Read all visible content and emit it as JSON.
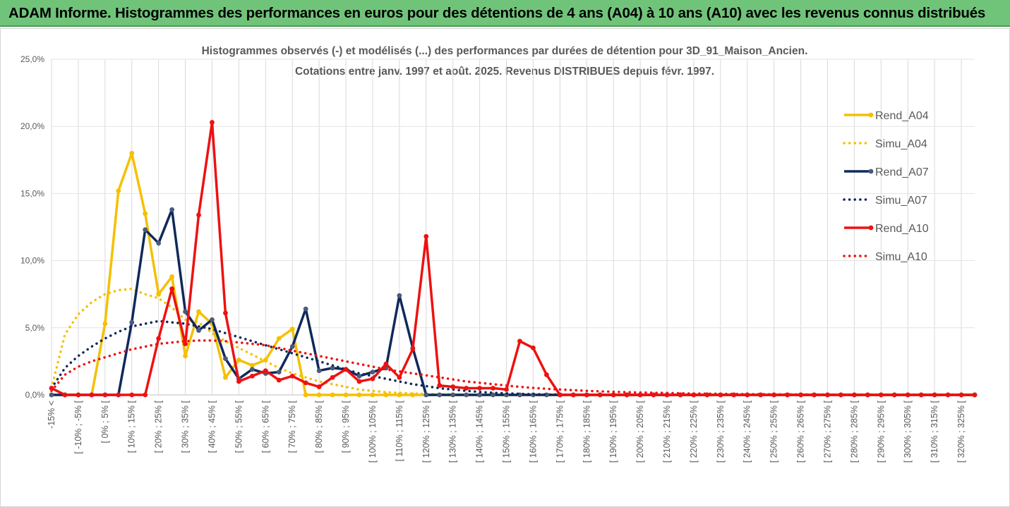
{
  "header": {
    "title": "ADAM Informe. Histogrammes des performances en euros pour des détentions de 4 ans (A04) à 10 ans (A10) avec les revenus connus distribués"
  },
  "chart_data": {
    "type": "line",
    "title_line1": "Histogrammes observés (-) et modélisés (...) des performances par durées de détention pour 3D_91_Maison_Ancien.",
    "title_line2": "Cotations entre janv. 1997 et août. 2025. Revenus DISTRIBUES depuis févr. 1997.",
    "ylim": [
      0,
      25
    ],
    "yticks": [
      "0,0%",
      "5,0%",
      "10,0%",
      "15,0%",
      "20,0%",
      "25,0%"
    ],
    "categories": [
      "-15% <",
      "[ -15% ; -10% [",
      "[ -10% ; -5% [",
      "[ -5% ; 0% [",
      "[ 0% ; 5% [",
      "[ 5% ; 10% [",
      "[ 10% ; 15% [",
      "[ 15% ; 20% [",
      "[ 20% ; 25% [",
      "[ 25% ; 30% [",
      "[ 30% ; 35% [",
      "[ 35% ; 40% [",
      "[ 40% ; 45% [",
      "[ 45% ; 50% [",
      "[ 50% ; 55% [",
      "[ 55% ; 60% [",
      "[ 60% ; 65% [",
      "[ 65% ; 70% [",
      "[ 70% ; 75% [",
      "[ 75% ; 80% [",
      "[ 80% ; 85% [",
      "[ 85% ; 90% [",
      "[ 90% ; 95% [",
      "[ 95% ; 100% [",
      "[ 100% ; 105% [",
      "[ 105% ; 110% [",
      "[ 110% ; 115% [",
      "[ 115% ; 120% [",
      "[ 120% ; 125% [",
      "[ 125% ; 130% [",
      "[ 130% ; 135% [",
      "[ 135% ; 140% [",
      "[ 140% ; 145% [",
      "[ 145% ; 150% [",
      "[ 150% ; 155% [",
      "[ 155% ; 160% [",
      "[ 160% ; 165% [",
      "[ 165% ; 170% [",
      "[ 170% ; 175% [",
      "[ 175% ; 180% [",
      "[ 180% ; 185% [",
      "[ 185% ; 190% [",
      "[ 190% ; 195% [",
      "[ 195% ; 200% [",
      "[ 200% ; 205% [",
      "[ 205% ; 210% [",
      "[ 210% ; 215% [",
      "[ 215% ; 220% [",
      "[ 220% ; 225% [",
      "[ 225% ; 230% [",
      "[ 230% ; 235% [",
      "[ 235% ; 240% [",
      "[ 240% ; 245% [",
      "[ 245% ; 250% [",
      "[ 250% ; 255% [",
      "[ 255% ; 260% [",
      "[ 260% ; 265% [",
      "[ 265% ; 270% [",
      "[ 270% ; 275% [",
      "[ 275% ; 280% [",
      "[ 280% ; 285% [",
      "[ 285% ; 290% [",
      "[ 290% ; 295% [",
      "[ 295% ; 300% [",
      "[ 300% ; 305% [",
      "[ 305% ; 310% [",
      "[ 310% ; 315% [",
      "[ 315% ; 320% [",
      "[ 320% ; 325% [",
      "[ 325% ; 330% ["
    ],
    "label_every": 2,
    "grid": true,
    "legend_position": "right",
    "series": [
      {
        "name": "Rend_A04",
        "style": "solid",
        "color": "#f5c000",
        "values": [
          0,
          0,
          0,
          0,
          5.3,
          15.2,
          18.0,
          13.5,
          7.5,
          8.8,
          2.9,
          6.2,
          5.3,
          1.3,
          2.6,
          2.2,
          2.6,
          4.2,
          4.9,
          0,
          0,
          0,
          0,
          0,
          0,
          0,
          0,
          0,
          0,
          0,
          0,
          0,
          0,
          0,
          0,
          0,
          0,
          0,
          0,
          0,
          0,
          0,
          0,
          0,
          0,
          0,
          0,
          0,
          0,
          0,
          0,
          0,
          0,
          0,
          0,
          0,
          0,
          0,
          0,
          0,
          0,
          0,
          0,
          0,
          0,
          0,
          0,
          0,
          0,
          0
        ]
      },
      {
        "name": "Simu_A04",
        "style": "dotted",
        "color": "#f5c000",
        "values": [
          0.5,
          4.5,
          6.0,
          6.9,
          7.5,
          7.8,
          7.9,
          7.5,
          7.2,
          6.5,
          5.6,
          5.4,
          4.6,
          4.0,
          3.5,
          3.0,
          2.5,
          2.0,
          1.6,
          1.3,
          1.0,
          0.8,
          0.6,
          0.4,
          0.3,
          0.2,
          0.15,
          0.1,
          0.07,
          0.05,
          0.03,
          0.02,
          0,
          0,
          0,
          0,
          0,
          0,
          0,
          0,
          0,
          0,
          0,
          0,
          0,
          0,
          0,
          0,
          0,
          0,
          0,
          0,
          0,
          0,
          0,
          0,
          0,
          0,
          0,
          0,
          0,
          0,
          0,
          0,
          0,
          0,
          0,
          0,
          0,
          0
        ]
      },
      {
        "name": "Rend_A07",
        "style": "solid",
        "color": "#10295a",
        "values": [
          0,
          0,
          0,
          0,
          0,
          0,
          5.4,
          12.3,
          11.3,
          13.8,
          6.2,
          4.8,
          5.6,
          2.7,
          1.2,
          1.9,
          1.6,
          1.7,
          3.6,
          6.4,
          1.8,
          2.0,
          1.9,
          1.4,
          1.7,
          2.0,
          7.4,
          3.5,
          0,
          0,
          0,
          0,
          0,
          0,
          0,
          0,
          0,
          0,
          0,
          0,
          0,
          0,
          0,
          0,
          0,
          0,
          0,
          0,
          0,
          0,
          0,
          0,
          0,
          0,
          0,
          0,
          0,
          0,
          0,
          0,
          0,
          0,
          0,
          0,
          0,
          0,
          0,
          0,
          0,
          0
        ]
      },
      {
        "name": "Simu_A07",
        "style": "dotted",
        "color": "#10295a",
        "values": [
          0.5,
          2.0,
          2.9,
          3.6,
          4.2,
          4.7,
          5.1,
          5.3,
          5.5,
          5.4,
          5.3,
          5.1,
          4.9,
          4.6,
          4.3,
          4.0,
          3.7,
          3.4,
          3.1,
          2.8,
          2.5,
          2.2,
          1.9,
          1.6,
          1.4,
          1.2,
          1.0,
          0.8,
          0.65,
          0.5,
          0.4,
          0.3,
          0.22,
          0.16,
          0.11,
          0.08,
          0.05,
          0.03,
          0.02,
          0.01,
          0,
          0,
          0,
          0,
          0,
          0,
          0,
          0,
          0,
          0,
          0,
          0,
          0,
          0,
          0,
          0,
          0,
          0,
          0,
          0,
          0,
          0,
          0,
          0,
          0,
          0,
          0,
          0,
          0,
          0
        ]
      },
      {
        "name": "Rend_A10",
        "style": "solid",
        "color": "#ee1111",
        "values": [
          0.5,
          0,
          0,
          0,
          0,
          0,
          0,
          0,
          4.2,
          7.9,
          3.8,
          13.4,
          20.3,
          6.1,
          1.0,
          1.4,
          1.8,
          1.1,
          1.4,
          0.9,
          0.6,
          1.3,
          1.9,
          1.0,
          1.2,
          2.3,
          1.3,
          3.4,
          11.8,
          0.7,
          0.6,
          0.5,
          0.5,
          0.5,
          0.4,
          4.0,
          3.5,
          1.5,
          0,
          0,
          0,
          0,
          0,
          0,
          0,
          0,
          0,
          0,
          0,
          0,
          0,
          0,
          0,
          0,
          0,
          0,
          0,
          0,
          0,
          0,
          0,
          0,
          0,
          0,
          0,
          0,
          0,
          0,
          0,
          0
        ]
      },
      {
        "name": "Simu_A10",
        "style": "dotted",
        "color": "#ee1111",
        "values": [
          0.3,
          1.5,
          2.1,
          2.5,
          2.8,
          3.1,
          3.4,
          3.6,
          3.8,
          3.9,
          4.0,
          4.05,
          4.05,
          4.0,
          3.9,
          3.8,
          3.7,
          3.5,
          3.3,
          3.1,
          2.9,
          2.7,
          2.5,
          2.3,
          2.1,
          1.9,
          1.75,
          1.6,
          1.45,
          1.3,
          1.15,
          1.0,
          0.9,
          0.8,
          0.7,
          0.6,
          0.52,
          0.45,
          0.4,
          0.35,
          0.3,
          0.26,
          0.23,
          0.2,
          0.18,
          0.16,
          0.14,
          0.12,
          0.1,
          0.09,
          0.08,
          0.07,
          0.06,
          0.05,
          0.04,
          0.04,
          0.03,
          0.03,
          0.02,
          0.02,
          0.02,
          0.01,
          0.01,
          0.01,
          0.01,
          0.01,
          0,
          0,
          0,
          0
        ]
      }
    ]
  }
}
